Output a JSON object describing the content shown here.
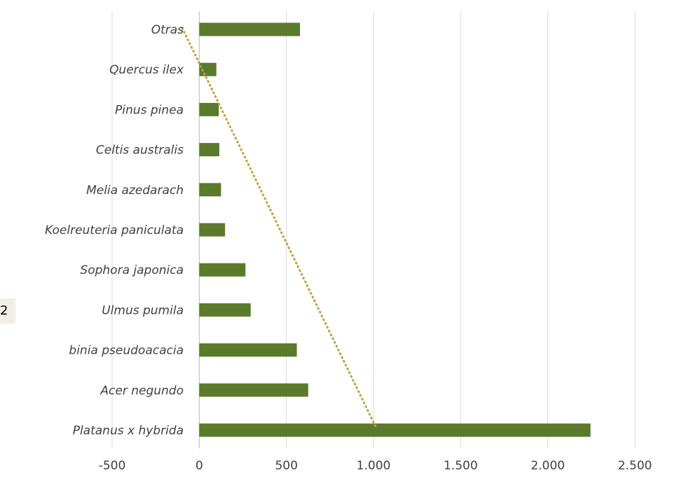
{
  "side_tag": {
    "text": "2"
  },
  "colors": {
    "bar": "#5b7a2b",
    "trendline": "#c2a03a",
    "grid": "#d9d9d9",
    "text": "#404040"
  },
  "chart_data": {
    "type": "bar",
    "orientation": "horizontal",
    "title": "",
    "xlabel": "",
    "ylabel": "",
    "categories": [
      "Platanus x hybrida",
      "Acer negundo",
      "binia pseudoacacia",
      "Ulmus pumila",
      "Sophora japonica",
      "Koelreuteria paniculata",
      "Melia azedarach",
      "Celtis australis",
      "Pinus pinea",
      "Quercus ilex",
      "Otras"
    ],
    "values": [
      2245,
      625,
      560,
      295,
      265,
      148,
      125,
      115,
      112,
      98,
      578
    ],
    "xlim": [
      -500,
      2500
    ],
    "xticks": [
      -500,
      0,
      500,
      1000,
      1500,
      2000,
      2500
    ],
    "xtick_labels": [
      "-500",
      "0",
      "500",
      "1.000",
      "1.500",
      "2.000",
      "2.500"
    ],
    "grid": "vertical",
    "legend": "none",
    "trendline": {
      "type": "linear",
      "style": "dotted",
      "from": {
        "category": "Platanus x hybrida",
        "value": 1010
      },
      "to": {
        "category": "Otras",
        "value": -100
      }
    }
  }
}
